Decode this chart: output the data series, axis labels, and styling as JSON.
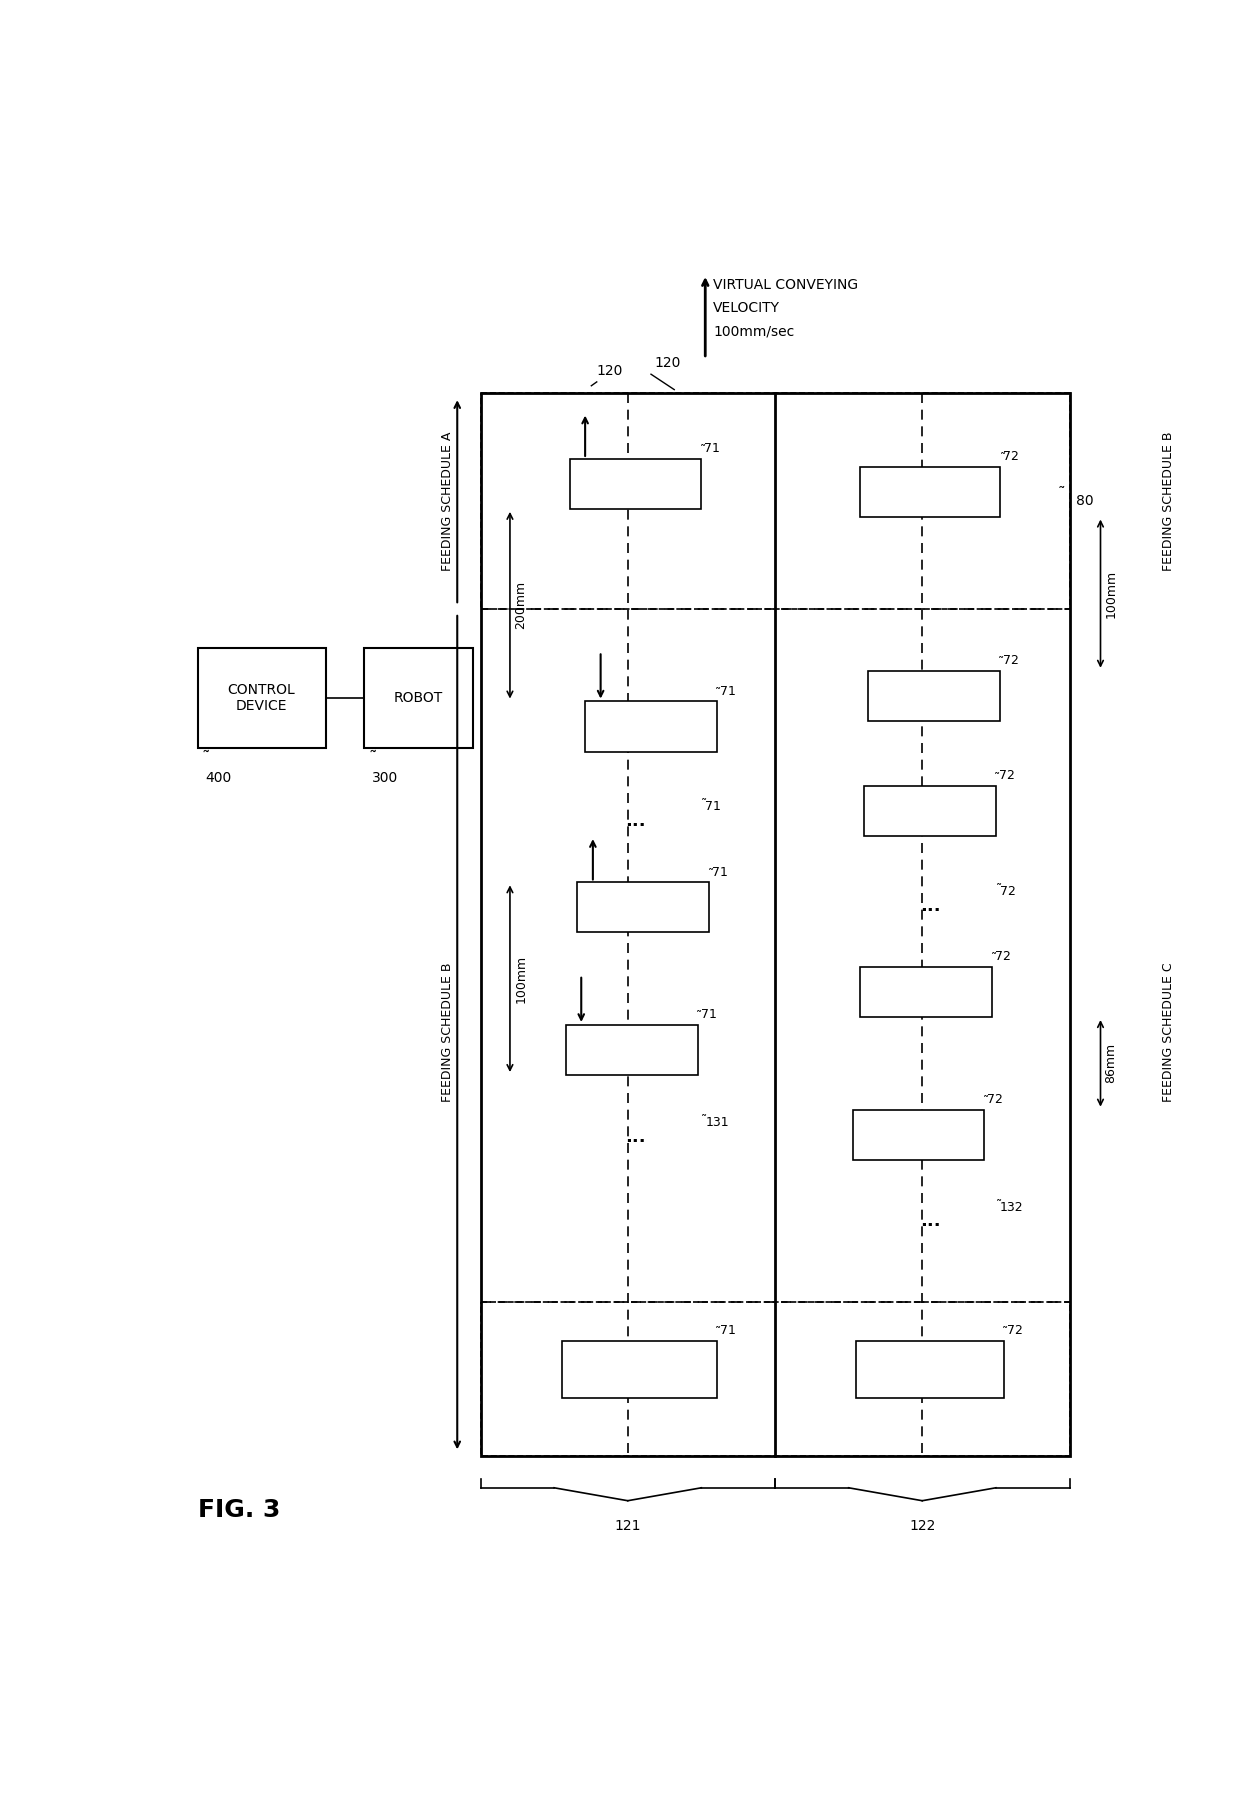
{
  "fig_width": 12.4,
  "fig_height": 18.03,
  "bg_color": "#ffffff",
  "fig_label": "FIG. 3",
  "velocity_line1": "VIRTUAL CONVEYING",
  "velocity_line2": "VELOCITY",
  "velocity_line3": "100mm/sec",
  "control_device_label": "CONTROL\nDEVICE",
  "robot_label": "ROBOT",
  "label_400": "400",
  "label_300": "300",
  "label_120": "120",
  "label_80": "80",
  "label_121": "121",
  "label_122": "122",
  "feeding_schedule_a": "FEEDING SCHEDULE A",
  "feeding_schedule_b_left": "FEEDING SCHEDULE B",
  "feeding_schedule_b_right": "FEEDING SCHEDULE B",
  "feeding_schedule_c": "FEEDING SCHEDULE C",
  "label_200mm": "200mm",
  "label_100mm_left": "100mm",
  "label_100mm_right": "100mm",
  "label_86mm": "86mm",
  "label_71": "71",
  "label_72": "72",
  "label_131": "131",
  "label_132": "132"
}
